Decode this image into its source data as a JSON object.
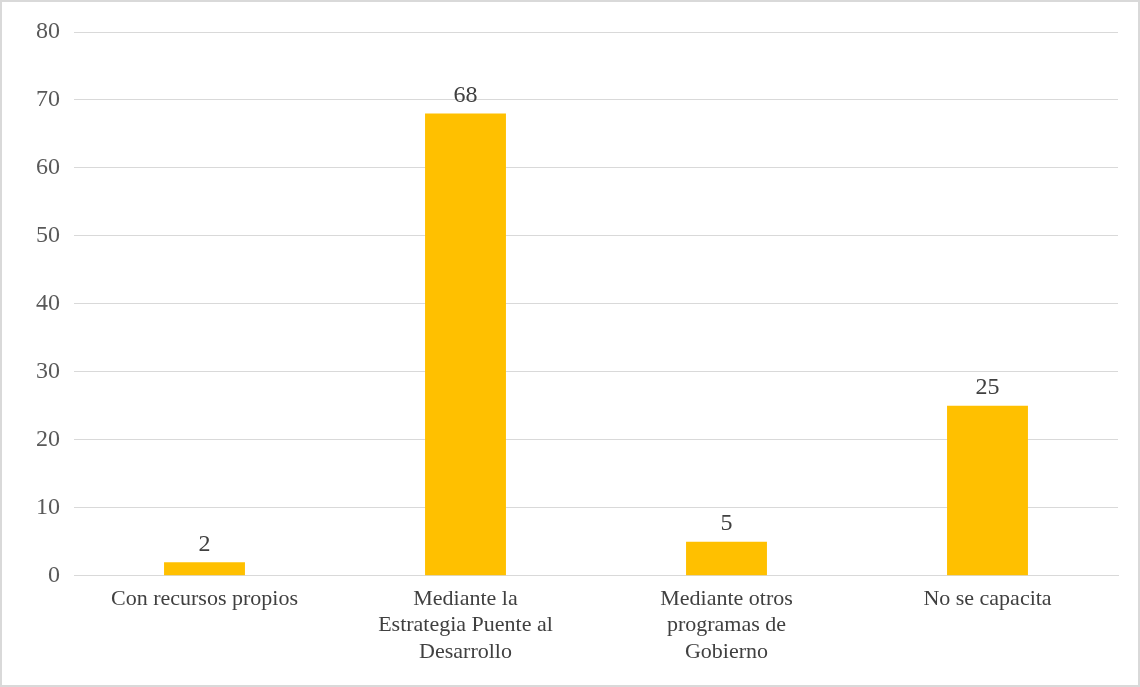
{
  "chart_data": {
    "type": "bar",
    "categories": [
      "Con recursos propios",
      "Mediante la Estrategia Puente al Desarrollo",
      "Mediante otros programas de Gobierno",
      "No se capacita"
    ],
    "values": [
      2,
      68,
      5,
      25
    ],
    "color": "#ffc000",
    "ylim": [
      0,
      80
    ],
    "yticks": [
      0,
      10,
      20,
      30,
      40,
      50,
      60,
      70,
      80
    ],
    "grid": "y",
    "data_labels": true
  }
}
